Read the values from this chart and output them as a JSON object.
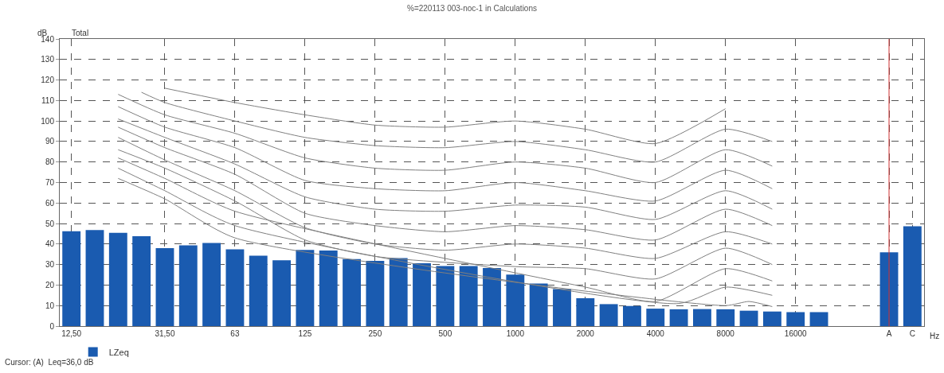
{
  "chart_data": {
    "type": "bar",
    "title": "%=220113 003-noc-1 in Calculations",
    "xlabel": "Hz",
    "ylabel": "dB",
    "annotations": [
      "Total",
      "Cursor: (A)  Leq=36,0 dB"
    ],
    "categories": [
      "12,50",
      null,
      null,
      null,
      "31,50",
      null,
      null,
      "63",
      null,
      null,
      "125",
      null,
      null,
      "250",
      null,
      null,
      "500",
      null,
      null,
      "1000",
      null,
      null,
      "2000",
      null,
      null,
      "4000",
      null,
      null,
      "8000",
      null,
      null,
      "16000",
      null,
      null,
      null,
      "A",
      "C"
    ],
    "ylim": [
      0,
      140
    ],
    "yticks": [
      0,
      10,
      20,
      30,
      40,
      50,
      60,
      70,
      80,
      90,
      100,
      110,
      120,
      130,
      140
    ],
    "grid": true,
    "legend": "bottom left",
    "marker": "none",
    "line_style": "solid",
    "ref_lines": [
      {
        "axis": "x",
        "value": "A",
        "color": "#d03030"
      }
    ],
    "series": [
      {
        "name": "LZeq",
        "color": "#1a5bb0",
        "values": [
          46.2,
          46.8,
          45.5,
          43.8,
          38,
          39.4,
          40.5,
          37.4,
          34.3,
          32.1,
          37.1,
          36.8,
          32.7,
          31.8,
          33.2,
          30.6,
          29.3,
          29.3,
          28.3,
          25.1,
          20.7,
          18,
          13.6,
          10.7,
          9.8,
          8.5,
          8.2,
          8.3,
          8.2,
          7.5,
          7.1,
          6.8,
          6.8,
          null,
          null,
          36.0,
          48.7
        ]
      },
      {
        "type": "line",
        "color": "#7f7f7f",
        "values": [
          null,
          null,
          null,
          null,
          116,
          null,
          null,
          109,
          null,
          null,
          103,
          null,
          null,
          98,
          null,
          null,
          97,
          null,
          null,
          100,
          null,
          null,
          96,
          null,
          null,
          89,
          null,
          null,
          106,
          null,
          null,
          null,
          null,
          null,
          null,
          null,
          null
        ]
      },
      {
        "type": "line",
        "color": "#7f7f7f",
        "values": [
          null,
          null,
          null,
          114,
          109,
          null,
          null,
          100,
          null,
          null,
          92,
          null,
          null,
          88,
          null,
          null,
          87,
          null,
          null,
          90,
          null,
          null,
          86,
          null,
          null,
          80,
          null,
          null,
          96,
          null,
          90,
          null,
          null,
          null,
          null,
          null,
          null
        ]
      },
      {
        "type": "line",
        "color": "#7f7f7f",
        "values": [
          null,
          null,
          113,
          null,
          103,
          null,
          null,
          94,
          null,
          null,
          82,
          null,
          null,
          77,
          null,
          null,
          76,
          null,
          null,
          80,
          null,
          null,
          77,
          null,
          null,
          70,
          null,
          null,
          86,
          null,
          78,
          null,
          null,
          null,
          null,
          null,
          null
        ]
      },
      {
        "type": "line",
        "color": "#7f7f7f",
        "values": [
          null,
          null,
          107,
          null,
          97,
          null,
          null,
          87,
          null,
          null,
          71,
          null,
          null,
          67,
          null,
          null,
          66,
          null,
          null,
          70,
          null,
          null,
          66,
          null,
          null,
          61,
          null,
          null,
          76,
          null,
          67,
          null,
          null,
          null,
          null,
          null,
          null
        ]
      },
      {
        "type": "line",
        "color": "#7f7f7f",
        "values": [
          null,
          null,
          101,
          null,
          92,
          null,
          null,
          79,
          null,
          null,
          63,
          null,
          null,
          57,
          null,
          null,
          56,
          null,
          null,
          59,
          null,
          null,
          58,
          null,
          null,
          52,
          null,
          null,
          66,
          null,
          57,
          null,
          null,
          null,
          null,
          null,
          null
        ]
      },
      {
        "type": "line",
        "color": "#7f7f7f",
        "values": [
          null,
          null,
          97,
          null,
          87,
          null,
          null,
          74,
          null,
          null,
          55,
          null,
          null,
          49,
          null,
          null,
          46,
          null,
          null,
          49,
          null,
          null,
          47,
          null,
          null,
          42,
          null,
          null,
          57,
          null,
          49,
          null,
          null,
          null,
          null,
          null,
          null
        ]
      },
      {
        "type": "line",
        "color": "#7f7f7f",
        "values": [
          null,
          null,
          92,
          null,
          81,
          null,
          null,
          66,
          null,
          null,
          48,
          null,
          null,
          40,
          null,
          null,
          37,
          null,
          null,
          40,
          null,
          null,
          38,
          null,
          null,
          33,
          null,
          null,
          46,
          null,
          40,
          null,
          null,
          null,
          null,
          null,
          null
        ]
      },
      {
        "type": "line",
        "color": "#7f7f7f",
        "values": [
          null,
          null,
          86,
          null,
          77,
          null,
          null,
          61,
          null,
          null,
          42,
          null,
          null,
          34,
          null,
          null,
          null,
          null,
          null,
          29,
          null,
          null,
          28,
          null,
          null,
          23,
          null,
          null,
          38,
          null,
          30,
          null,
          null,
          null,
          null,
          null,
          null
        ]
      },
      {
        "type": "line",
        "color": "#7f7f7f",
        "values": [
          null,
          null,
          82,
          null,
          72,
          null,
          null,
          56,
          null,
          null,
          null,
          null,
          null,
          null,
          null,
          null,
          null,
          null,
          null,
          null,
          null,
          null,
          19,
          null,
          null,
          12,
          null,
          null,
          28,
          null,
          22,
          null,
          null,
          null,
          null,
          null,
          null
        ]
      },
      {
        "type": "line",
        "color": "#7f7f7f",
        "values": [
          null,
          null,
          77,
          null,
          66,
          null,
          null,
          49,
          null,
          null,
          null,
          null,
          null,
          null,
          null,
          null,
          null,
          null,
          null,
          null,
          null,
          null,
          null,
          null,
          null,
          null,
          11,
          null,
          19,
          null,
          15,
          null,
          null,
          null,
          null,
          null,
          null
        ]
      },
      {
        "type": "line",
        "color": "#7f7f7f",
        "values": [
          null,
          null,
          72,
          null,
          62,
          null,
          null,
          43,
          null,
          null,
          null,
          null,
          null,
          null,
          null,
          null,
          null,
          null,
          null,
          null,
          null,
          null,
          null,
          null,
          null,
          null,
          null,
          null,
          10,
          12,
          9.5,
          null,
          null,
          null,
          null,
          null,
          null
        ]
      }
    ]
  }
}
